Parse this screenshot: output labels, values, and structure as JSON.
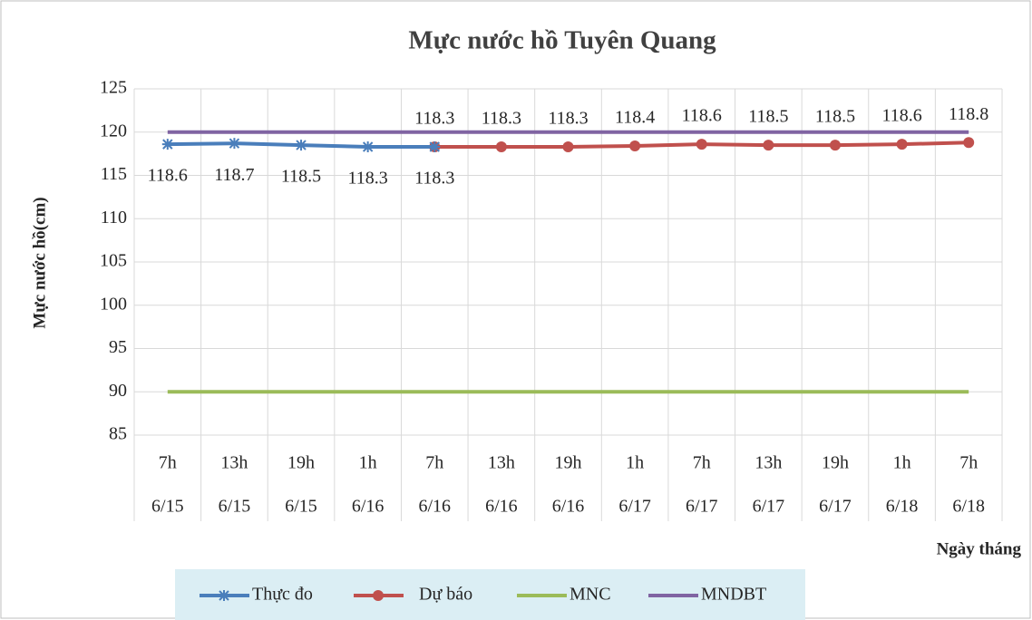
{
  "chart_data": {
    "type": "line",
    "title": "Mực nước hồ Tuyên Quang",
    "ylabel": "Mực nước hồ(cm)",
    "xlabel": "Ngày tháng",
    "categories": [
      "7h",
      "13h",
      "19h",
      "1h",
      "7h",
      "13h",
      "19h",
      "1h",
      "7h",
      "13h",
      "19h",
      "1h",
      "7h"
    ],
    "category_dates": [
      "6/15",
      "6/15",
      "6/15",
      "6/16",
      "6/16",
      "6/16",
      "6/16",
      "6/17",
      "6/17",
      "6/17",
      "6/17",
      "6/18",
      "6/18"
    ],
    "ylim": [
      85,
      125
    ],
    "yticks": [
      85,
      90,
      95,
      100,
      105,
      110,
      115,
      120,
      125
    ],
    "grid": true,
    "legend": "bottom",
    "series": [
      {
        "name": "Thực đo",
        "color": "#4a7ebb",
        "marker": "star",
        "label_position": "below",
        "values": [
          118.6,
          118.7,
          118.5,
          118.3,
          118.3,
          null,
          null,
          null,
          null,
          null,
          null,
          null,
          null
        ]
      },
      {
        "name": "Dự báo",
        "color": "#c0504d",
        "marker": "circle",
        "label_position": "above",
        "values": [
          null,
          null,
          null,
          null,
          118.3,
          118.3,
          118.3,
          118.4,
          118.6,
          118.5,
          118.5,
          118.6,
          118.8
        ]
      },
      {
        "name": "MNC",
        "color": "#9bbb59",
        "marker": "none",
        "label_position": "none",
        "values": [
          90,
          90,
          90,
          90,
          90,
          90,
          90,
          90,
          90,
          90,
          90,
          90,
          90
        ]
      },
      {
        "name": "MNDBT",
        "color": "#8064a2",
        "marker": "none",
        "label_position": "none",
        "values": [
          120,
          120,
          120,
          120,
          120,
          120,
          120,
          120,
          120,
          120,
          120,
          120,
          120
        ]
      }
    ]
  }
}
